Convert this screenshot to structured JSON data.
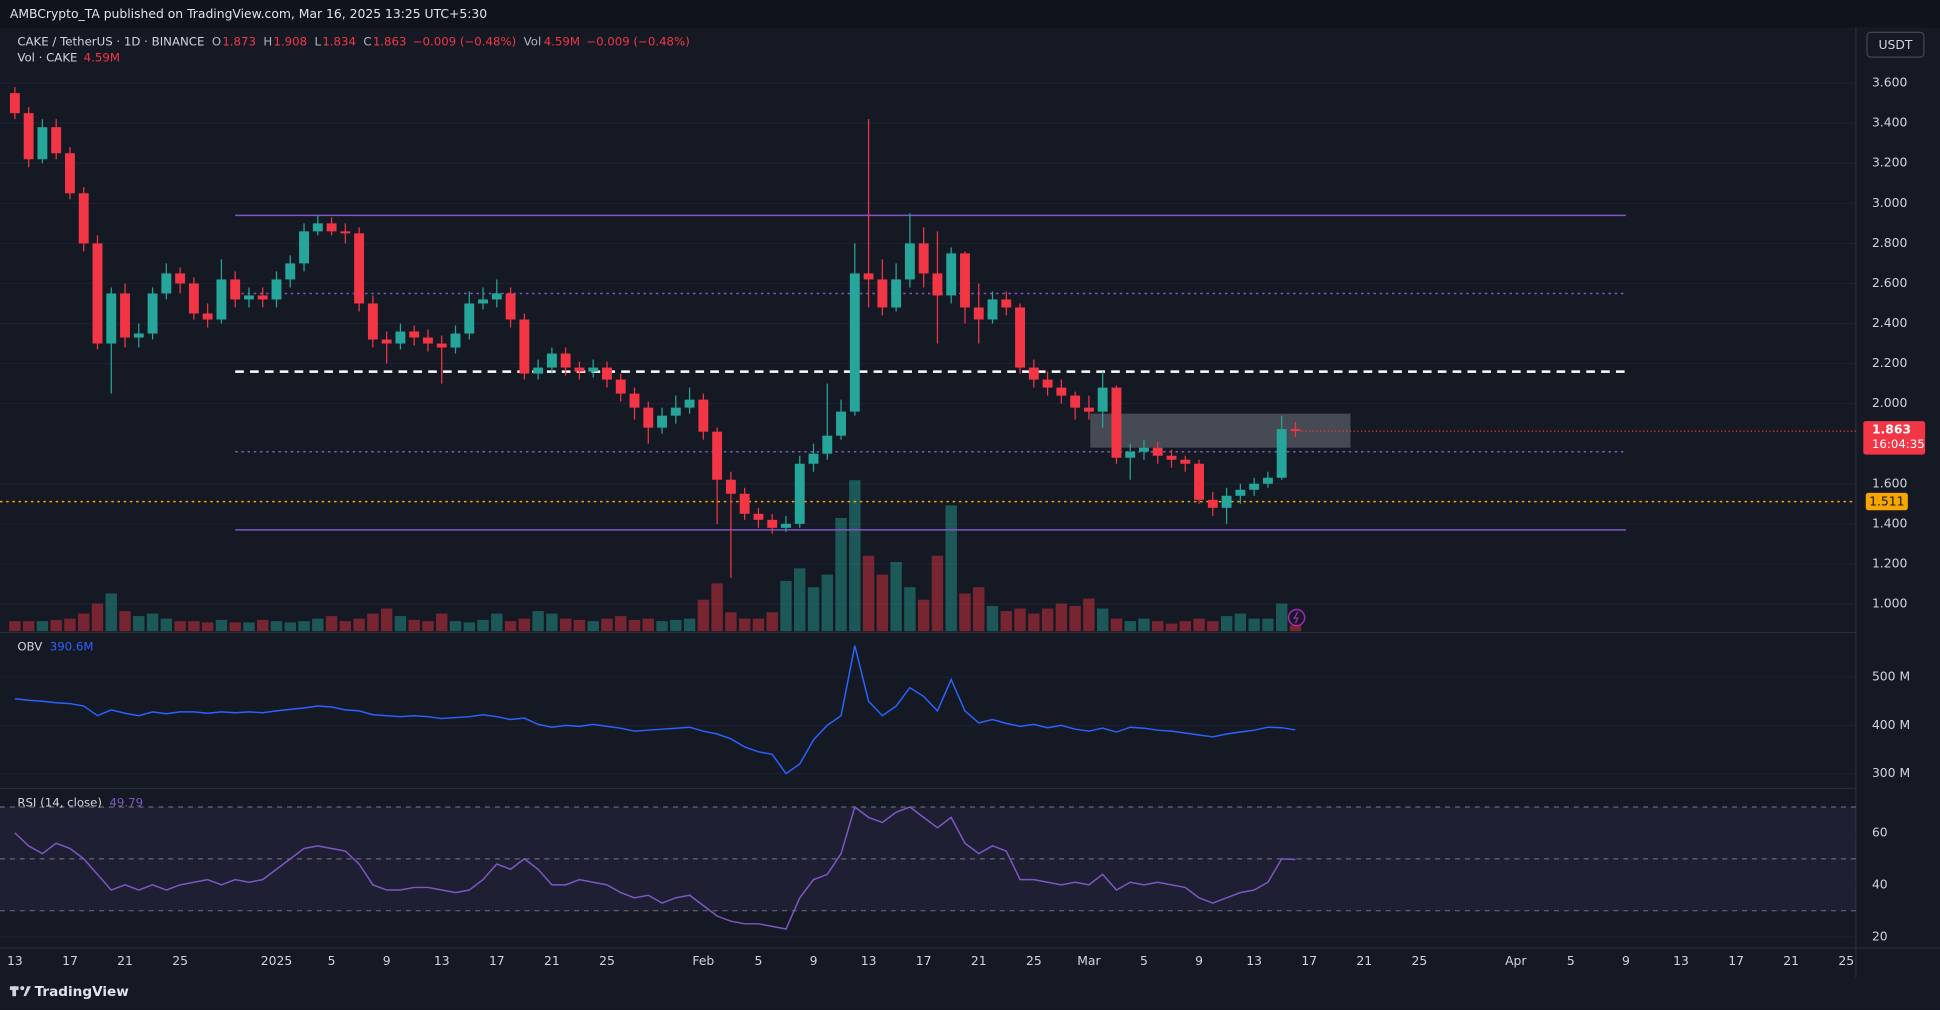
{
  "page": {
    "byline": "AMBCrypto_TA published on TradingView.com, Mar 16, 2025 13:25 UTC+5:30",
    "currency": "USDT",
    "brand": "TradingView"
  },
  "chart_data": [
    {
      "type": "candlestick",
      "title": "CAKE / TetherUS · 1D · BINANCE",
      "ohlc_letters": [
        "O",
        "H",
        "L",
        "C"
      ],
      "change": "−0.009 (−0.48%)",
      "volume_title": "Vol",
      "volume_label": "4.59M",
      "volume_change": "−0.009 (−0.48%)",
      "volume_pane_title": "Vol · CAKE",
      "up_color": "#26a69a",
      "down_color": "#f23645",
      "open": [
        3.55,
        3.45,
        3.22,
        3.38,
        3.25,
        3.05,
        2.8,
        2.3,
        2.55,
        2.33,
        2.35,
        2.55,
        2.65,
        2.6,
        2.45,
        2.42,
        2.62,
        2.52,
        2.54,
        2.52,
        2.62,
        2.7,
        2.86,
        2.9,
        2.86,
        2.85,
        2.5,
        2.32,
        2.3,
        2.36,
        2.33,
        2.3,
        2.28,
        2.35,
        2.5,
        2.52,
        2.55,
        2.42,
        2.15,
        2.18,
        2.25,
        2.18,
        2.16,
        2.18,
        2.12,
        2.05,
        1.98,
        1.88,
        1.94,
        1.98,
        2.02,
        1.86,
        1.62,
        1.55,
        1.45,
        1.42,
        1.38,
        1.4,
        1.7,
        1.75,
        1.84,
        1.96,
        2.65,
        2.62,
        2.48,
        2.62,
        2.8,
        2.65,
        2.54,
        2.75,
        2.48,
        2.42,
        2.52,
        2.48,
        2.18,
        2.12,
        2.08,
        2.04,
        1.98,
        1.96,
        2.08,
        1.73,
        1.76,
        1.78,
        1.74,
        1.72,
        1.7,
        1.52,
        1.48,
        1.54,
        1.57,
        1.6,
        1.63,
        1.873
      ],
      "high": [
        3.58,
        3.48,
        3.42,
        3.42,
        3.28,
        3.08,
        2.84,
        2.58,
        2.6,
        2.4,
        2.58,
        2.7,
        2.68,
        2.63,
        2.5,
        2.72,
        2.66,
        2.58,
        2.58,
        2.66,
        2.74,
        2.9,
        2.94,
        2.93,
        2.9,
        2.88,
        2.54,
        2.36,
        2.4,
        2.39,
        2.37,
        2.34,
        2.39,
        2.56,
        2.58,
        2.62,
        2.58,
        2.45,
        2.22,
        2.28,
        2.28,
        2.21,
        2.22,
        2.21,
        2.15,
        2.08,
        2.01,
        1.98,
        2.04,
        2.08,
        2.05,
        1.88,
        1.66,
        1.58,
        1.48,
        1.45,
        1.44,
        1.74,
        1.8,
        2.1,
        2.02,
        2.8,
        3.42,
        2.72,
        2.7,
        2.95,
        2.88,
        2.86,
        2.78,
        2.76,
        2.6,
        2.56,
        2.56,
        2.5,
        2.22,
        2.16,
        2.12,
        2.06,
        2.04,
        2.16,
        2.09,
        1.8,
        1.82,
        1.81,
        1.77,
        1.74,
        1.72,
        1.56,
        1.58,
        1.6,
        1.63,
        1.66,
        1.94,
        1.908
      ],
      "low": [
        3.42,
        3.18,
        3.2,
        3.22,
        3.02,
        2.76,
        2.27,
        2.05,
        2.28,
        2.28,
        2.32,
        2.52,
        2.55,
        2.42,
        2.38,
        2.4,
        2.48,
        2.48,
        2.48,
        2.48,
        2.58,
        2.66,
        2.84,
        2.84,
        2.8,
        2.46,
        2.28,
        2.2,
        2.27,
        2.29,
        2.26,
        2.1,
        2.25,
        2.32,
        2.47,
        2.48,
        2.38,
        2.12,
        2.12,
        2.15,
        2.14,
        2.12,
        2.13,
        2.08,
        2.01,
        1.92,
        1.8,
        1.85,
        1.9,
        1.95,
        1.82,
        1.4,
        1.13,
        1.42,
        1.38,
        1.35,
        1.36,
        1.38,
        1.66,
        1.72,
        1.82,
        1.94,
        2.48,
        2.44,
        2.46,
        2.58,
        2.58,
        2.3,
        2.5,
        2.4,
        2.3,
        2.4,
        2.44,
        2.15,
        2.08,
        2.04,
        2.0,
        1.92,
        1.92,
        1.88,
        1.7,
        1.62,
        1.72,
        1.7,
        1.68,
        1.66,
        1.5,
        1.44,
        1.4,
        1.5,
        1.54,
        1.58,
        1.62,
        1.834
      ],
      "close": [
        3.45,
        3.22,
        3.38,
        3.25,
        3.05,
        2.8,
        2.3,
        2.55,
        2.33,
        2.35,
        2.55,
        2.65,
        2.6,
        2.45,
        2.42,
        2.62,
        2.52,
        2.54,
        2.52,
        2.62,
        2.7,
        2.86,
        2.9,
        2.86,
        2.85,
        2.5,
        2.32,
        2.3,
        2.36,
        2.33,
        2.3,
        2.28,
        2.35,
        2.5,
        2.52,
        2.55,
        2.42,
        2.15,
        2.18,
        2.25,
        2.18,
        2.16,
        2.18,
        2.12,
        2.05,
        1.98,
        1.88,
        1.94,
        1.98,
        2.02,
        1.86,
        1.62,
        1.55,
        1.45,
        1.42,
        1.38,
        1.4,
        1.7,
        1.75,
        1.84,
        1.96,
        2.65,
        2.62,
        2.48,
        2.62,
        2.8,
        2.65,
        2.54,
        2.75,
        2.48,
        2.42,
        2.52,
        2.48,
        2.18,
        2.12,
        2.08,
        2.04,
        1.98,
        1.96,
        2.08,
        1.73,
        1.76,
        1.78,
        1.74,
        1.72,
        1.7,
        1.52,
        1.48,
        1.54,
        1.57,
        1.6,
        1.63,
        1.873,
        1.863
      ],
      "volume": [
        8,
        8,
        8,
        9,
        10,
        14,
        22,
        30,
        16,
        12,
        14,
        10,
        8,
        8,
        7,
        9,
        7,
        7,
        9,
        8,
        7,
        8,
        10,
        12,
        8,
        10,
        14,
        18,
        12,
        9,
        8,
        14,
        8,
        7,
        9,
        14,
        8,
        10,
        16,
        14,
        10,
        9,
        8,
        10,
        12,
        9,
        10,
        8,
        9,
        10,
        25,
        38,
        15,
        10,
        10,
        15,
        40,
        50,
        35,
        45,
        90,
        120,
        60,
        45,
        55,
        35,
        25,
        60,
        100,
        30,
        35,
        20,
        16,
        18,
        14,
        18,
        22,
        20,
        26,
        18,
        10,
        8,
        10,
        8,
        6,
        8,
        10,
        8,
        12,
        14,
        10,
        10,
        22,
        4.59
      ],
      "volume_ylim": [
        0,
        480
      ],
      "xlim": [
        -1.08,
        133.7
      ],
      "xticks": [
        {
          "value": 0,
          "label": "13"
        },
        {
          "value": 4,
          "label": "17"
        },
        {
          "value": 8,
          "label": "21"
        },
        {
          "value": 12,
          "label": "25"
        },
        {
          "value": 19,
          "label": "2025"
        },
        {
          "value": 23,
          "label": "5"
        },
        {
          "value": 27,
          "label": "9"
        },
        {
          "value": 31,
          "label": "13"
        },
        {
          "value": 35,
          "label": "17"
        },
        {
          "value": 39,
          "label": "21"
        },
        {
          "value": 43,
          "label": "25"
        },
        {
          "value": 50,
          "label": "Feb"
        },
        {
          "value": 54,
          "label": "5"
        },
        {
          "value": 58,
          "label": "9"
        },
        {
          "value": 62,
          "label": "13"
        },
        {
          "value": 66,
          "label": "17"
        },
        {
          "value": 70,
          "label": "21"
        },
        {
          "value": 74,
          "label": "25"
        },
        {
          "value": 78,
          "label": "Mar"
        },
        {
          "value": 82,
          "label": "5"
        },
        {
          "value": 86,
          "label": "9"
        },
        {
          "value": 90,
          "label": "13"
        },
        {
          "value": 94,
          "label": "17"
        },
        {
          "value": 98,
          "label": "21"
        },
        {
          "value": 102,
          "label": "25"
        },
        {
          "value": 109,
          "label": "Apr"
        },
        {
          "value": 113,
          "label": "5"
        },
        {
          "value": 117,
          "label": "9"
        },
        {
          "value": 121,
          "label": "13"
        },
        {
          "value": 125,
          "label": "17"
        },
        {
          "value": 129,
          "label": "21"
        },
        {
          "value": 133,
          "label": "25"
        }
      ],
      "ylim": [
        0.864,
        3.878
      ],
      "yticks": [
        {
          "value": 1.0,
          "label": "1.000"
        },
        {
          "value": 1.2,
          "label": "1.200"
        },
        {
          "value": 1.4,
          "label": "1.400"
        },
        {
          "value": 1.6,
          "label": "1.600"
        },
        {
          "value": 2.0,
          "label": "2.000"
        },
        {
          "value": 2.2,
          "label": "2.200"
        },
        {
          "value": 2.4,
          "label": "2.400"
        },
        {
          "value": 2.6,
          "label": "2.600"
        },
        {
          "value": 2.8,
          "label": "2.800"
        },
        {
          "value": 3.0,
          "label": "3.000"
        },
        {
          "value": 3.2,
          "label": "3.200"
        },
        {
          "value": 3.4,
          "label": "3.400"
        },
        {
          "value": 3.6,
          "label": "3.600"
        }
      ],
      "levels": [
        {
          "value": 2.94,
          "from": 16,
          "to": 117,
          "style": "solid",
          "color": "#7e57c2"
        },
        {
          "value": 2.55,
          "from": 16,
          "to": 117,
          "style": "dotted",
          "color": "#7e57c2"
        },
        {
          "value": 2.16,
          "from": 16,
          "to": 117,
          "style": "dashed",
          "color": "#ffffff"
        },
        {
          "value": 1.76,
          "from": 16,
          "to": 117,
          "style": "dotted",
          "color": "#7e57c2"
        },
        {
          "value": 1.37,
          "from": 16,
          "to": 117,
          "style": "solid",
          "color": "#7e57c2"
        },
        {
          "value": 1.511,
          "style": "dotted",
          "color": "#f7a600",
          "tag": true
        }
      ],
      "zone": {
        "from": 78.1,
        "to": 97,
        "low": 1.78,
        "high": 1.95,
        "color": "#787b86"
      },
      "countdown": "16:04:35"
    },
    {
      "type": "line",
      "title": "OBV",
      "value_label": "390.6M",
      "color": "#2962ff",
      "values": [
        455,
        452,
        450,
        447,
        445,
        440,
        420,
        432,
        425,
        420,
        428,
        424,
        428,
        428,
        425,
        428,
        426,
        428,
        426,
        430,
        433,
        436,
        440,
        438,
        432,
        430,
        422,
        420,
        418,
        420,
        418,
        414,
        416,
        418,
        422,
        418,
        412,
        415,
        402,
        396,
        400,
        398,
        402,
        398,
        394,
        388,
        390,
        392,
        394,
        396,
        388,
        382,
        372,
        355,
        345,
        340,
        300,
        320,
        370,
        400,
        420,
        565,
        450,
        420,
        440,
        478,
        460,
        430,
        495,
        430,
        405,
        412,
        404,
        398,
        402,
        395,
        400,
        392,
        388,
        394,
        386,
        396,
        394,
        390,
        388,
        384,
        380,
        376,
        382,
        386,
        390,
        396,
        395,
        390.6
      ],
      "ylim": [
        272,
        590
      ],
      "yticks": [
        {
          "value": 500,
          "label": "500 M"
        },
        {
          "value": 400,
          "label": "400 M"
        },
        {
          "value": 300,
          "label": "300 M"
        }
      ]
    },
    {
      "type": "line",
      "title": "RSI (14, close)",
      "color": "#7e57c2",
      "values": [
        60,
        55,
        52,
        56,
        54,
        50,
        44,
        38,
        40,
        38,
        40,
        38,
        40,
        41,
        42,
        40,
        42,
        41,
        42,
        46,
        50,
        54,
        55,
        54,
        53,
        48,
        40,
        38,
        38,
        39,
        39,
        38,
        37,
        38,
        42,
        48,
        46,
        50,
        46,
        40,
        40,
        42,
        41,
        40,
        37,
        35,
        36,
        33,
        35,
        36,
        32,
        28,
        26,
        25,
        25,
        24,
        23,
        35,
        42,
        44,
        52,
        70,
        66,
        64,
        68,
        70,
        66,
        62,
        66,
        56,
        52,
        55,
        53,
        42,
        42,
        41,
        40,
        41,
        40,
        44,
        38,
        41,
        40,
        41,
        40,
        39,
        35,
        33,
        35,
        37,
        38,
        41,
        50,
        49.79
      ],
      "ylim": [
        15.7,
        76.7
      ],
      "yticks": [
        60,
        40,
        20
      ],
      "bands": [
        30,
        50,
        70
      ]
    }
  ]
}
